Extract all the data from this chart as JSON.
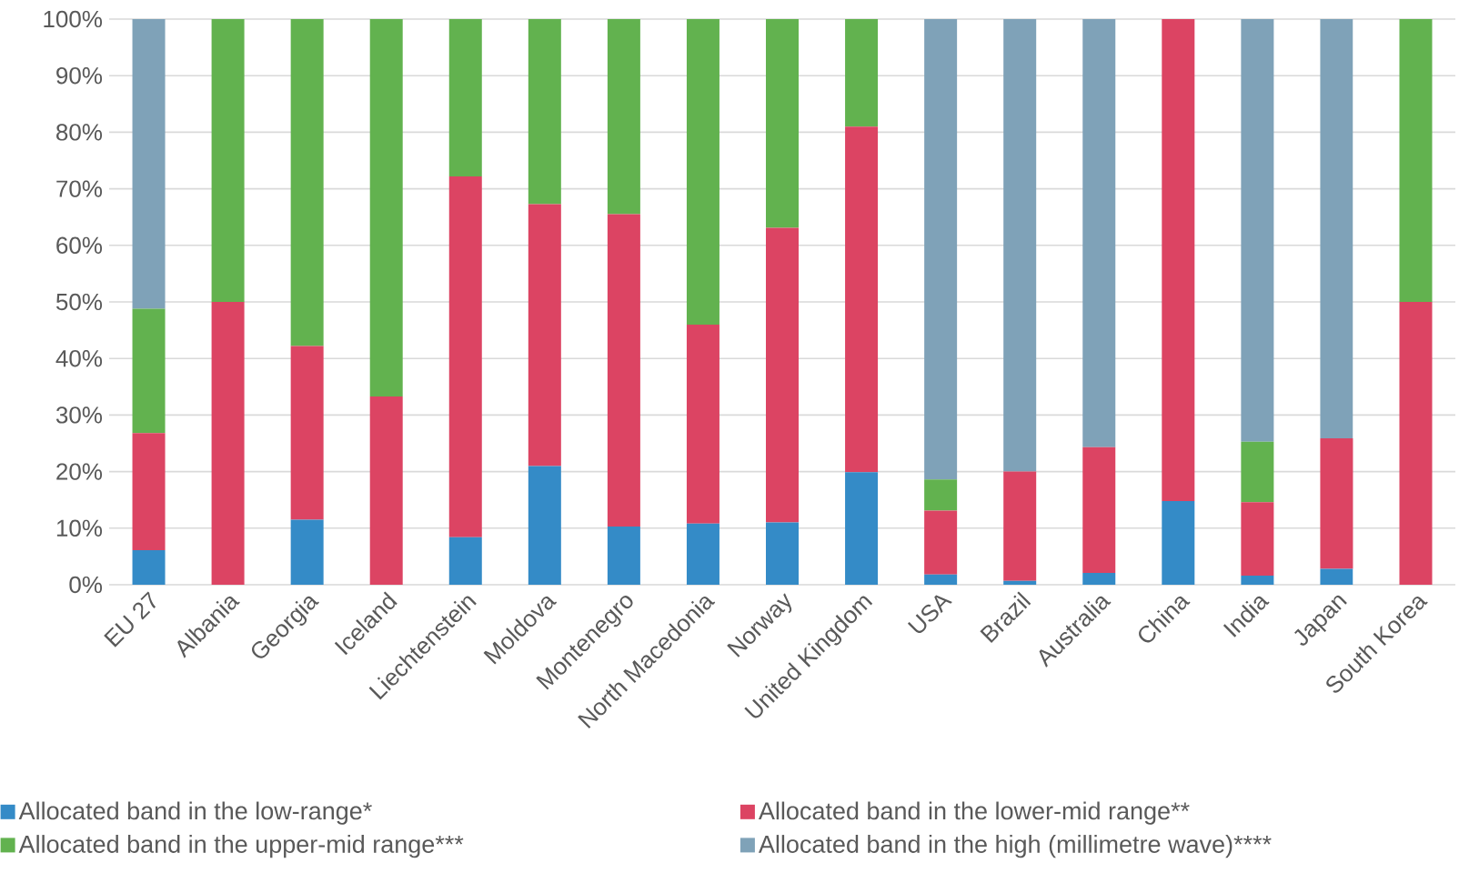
{
  "chart_data": {
    "type": "bar",
    "stacked": true,
    "categories": [
      "EU 27",
      "Albania",
      "Georgia",
      "Iceland",
      "Liechtenstein",
      "Moldova",
      "Montenegro",
      "North Macedonia",
      "Norway",
      "United Kingdom",
      "USA",
      "Brazil",
      "Australia",
      "China",
      "India",
      "Japan",
      "South Korea"
    ],
    "series": [
      {
        "name": "Allocated band in the low-range*",
        "color": "#348bc7",
        "values": [
          6.1,
          0,
          11.5,
          0,
          8.4,
          21.0,
          10.3,
          10.8,
          11.0,
          19.9,
          1.8,
          0.7,
          2.1,
          14.8,
          1.6,
          2.8,
          0
        ]
      },
      {
        "name": "Allocated band in the lower-mid range**",
        "color": "#dc4463",
        "values": [
          20.7,
          50,
          30.7,
          33.3,
          63.8,
          46.3,
          55.2,
          35.2,
          52.1,
          61.1,
          11.3,
          19.3,
          22.2,
          85.2,
          13.0,
          23.1,
          50
        ]
      },
      {
        "name": "Allocated band in the upper-mid range***",
        "color": "#62b24f",
        "values": [
          22.0,
          50,
          57.8,
          66.7,
          27.8,
          32.7,
          34.5,
          54.0,
          36.9,
          19.0,
          5.5,
          0,
          0,
          0,
          10.7,
          0,
          50
        ]
      },
      {
        "name": "Allocated band in the high (millimetre wave)****",
        "color": "#7fa2b8",
        "values": [
          51.2,
          0,
          0,
          0,
          0,
          0,
          0,
          0,
          0,
          0,
          81.4,
          80.0,
          75.7,
          0,
          74.7,
          74.1,
          0
        ]
      }
    ],
    "ylim": [
      0,
      100
    ],
    "yticks": [
      {
        "value": 0,
        "label": "0%"
      },
      {
        "value": 10,
        "label": "10%"
      },
      {
        "value": 20,
        "label": "20%"
      },
      {
        "value": 30,
        "label": "30%"
      },
      {
        "value": 40,
        "label": "40%"
      },
      {
        "value": 50,
        "label": "50%"
      },
      {
        "value": 60,
        "label": "60%"
      },
      {
        "value": 70,
        "label": "70%"
      },
      {
        "value": 80,
        "label": "80%"
      },
      {
        "value": 90,
        "label": "90%"
      },
      {
        "value": 100,
        "label": "100%"
      }
    ],
    "grid": "y",
    "legend": "bottom"
  }
}
